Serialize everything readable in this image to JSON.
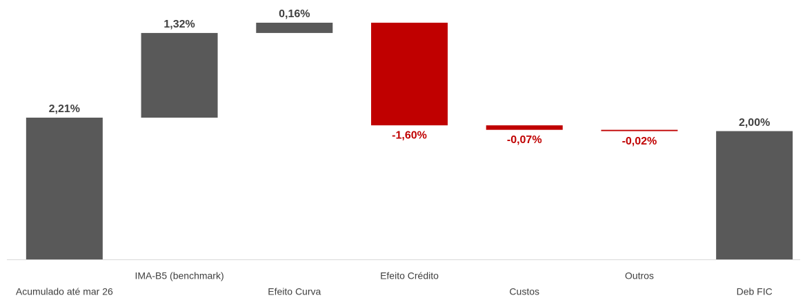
{
  "chart_data": {
    "type": "waterfall",
    "categories": [
      "Acumulado até mar 26",
      "IMA-B5 (benchmark)",
      "Efeito Curva",
      "Efeito Crédito",
      "Custos",
      "Outros",
      "Deb FIC"
    ],
    "values": [
      2.21,
      1.32,
      0.16,
      -1.6,
      -0.07,
      -0.02,
      2.0
    ],
    "value_labels": [
      "2,21%",
      "1,32%",
      "0,16%",
      "-1,60%",
      "-0,07%",
      "-0,02%",
      "2,00%"
    ],
    "color": "#595959",
    "negative_color": "#c00000"
  }
}
